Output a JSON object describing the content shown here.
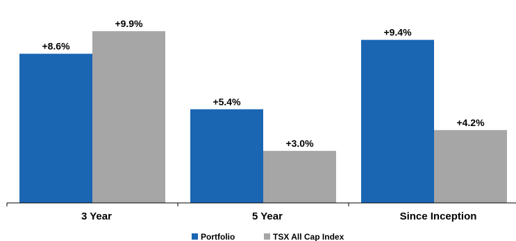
{
  "chart_data": {
    "type": "bar",
    "title": "",
    "xlabel": "",
    "ylabel": "",
    "categories": [
      "3 Year",
      "5 Year",
      "Since Inception"
    ],
    "series": [
      {
        "name": "Portfolio",
        "values": [
          8.6,
          5.4,
          9.4
        ],
        "labels": [
          "+8.6%",
          "+5.4%",
          "+9.4%"
        ],
        "color": "#1a66b3"
      },
      {
        "name": "TSX All Cap Index",
        "values": [
          9.9,
          3.0,
          4.2
        ],
        "labels": [
          "+9.9%",
          "+3.0%",
          "+4.2%"
        ],
        "color": "#a6a6a6"
      }
    ],
    "ylim": [
      0,
      10.9
    ],
    "grid": false,
    "legend": "bottom"
  }
}
